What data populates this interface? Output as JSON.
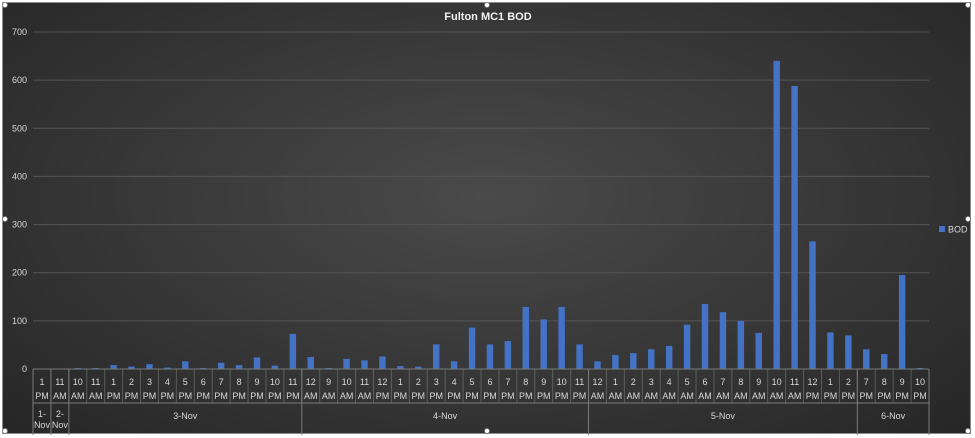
{
  "chart_data": {
    "type": "bar",
    "title": "Fulton MC1 BOD",
    "xlabel": "",
    "ylabel": "",
    "ylim": [
      0,
      700
    ],
    "yticks": [
      0,
      100,
      200,
      300,
      400,
      500,
      600,
      700
    ],
    "grid": true,
    "legend_position": "right",
    "bar_color": "#4472c4",
    "categories": [
      {
        "hour": "1",
        "ampm": "PM"
      },
      {
        "hour": "11",
        "ampm": "AM"
      },
      {
        "hour": "10",
        "ampm": "AM"
      },
      {
        "hour": "11",
        "ampm": "AM"
      },
      {
        "hour": "1",
        "ampm": "PM"
      },
      {
        "hour": "2",
        "ampm": "PM"
      },
      {
        "hour": "3",
        "ampm": "PM"
      },
      {
        "hour": "4",
        "ampm": "PM"
      },
      {
        "hour": "5",
        "ampm": "PM"
      },
      {
        "hour": "6",
        "ampm": "PM"
      },
      {
        "hour": "7",
        "ampm": "PM"
      },
      {
        "hour": "8",
        "ampm": "PM"
      },
      {
        "hour": "9",
        "ampm": "PM"
      },
      {
        "hour": "10",
        "ampm": "PM"
      },
      {
        "hour": "11",
        "ampm": "PM"
      },
      {
        "hour": "12",
        "ampm": "AM"
      },
      {
        "hour": "9",
        "ampm": "AM"
      },
      {
        "hour": "10",
        "ampm": "AM"
      },
      {
        "hour": "11",
        "ampm": "AM"
      },
      {
        "hour": "12",
        "ampm": "PM"
      },
      {
        "hour": "1",
        "ampm": "PM"
      },
      {
        "hour": "2",
        "ampm": "PM"
      },
      {
        "hour": "3",
        "ampm": "PM"
      },
      {
        "hour": "4",
        "ampm": "PM"
      },
      {
        "hour": "5",
        "ampm": "PM"
      },
      {
        "hour": "6",
        "ampm": "PM"
      },
      {
        "hour": "7",
        "ampm": "PM"
      },
      {
        "hour": "8",
        "ampm": "PM"
      },
      {
        "hour": "9",
        "ampm": "PM"
      },
      {
        "hour": "10",
        "ampm": "PM"
      },
      {
        "hour": "11",
        "ampm": "PM"
      },
      {
        "hour": "12",
        "ampm": "AM"
      },
      {
        "hour": "1",
        "ampm": "AM"
      },
      {
        "hour": "2",
        "ampm": "AM"
      },
      {
        "hour": "3",
        "ampm": "AM"
      },
      {
        "hour": "4",
        "ampm": "AM"
      },
      {
        "hour": "5",
        "ampm": "AM"
      },
      {
        "hour": "6",
        "ampm": "AM"
      },
      {
        "hour": "7",
        "ampm": "AM"
      },
      {
        "hour": "8",
        "ampm": "AM"
      },
      {
        "hour": "9",
        "ampm": "AM"
      },
      {
        "hour": "10",
        "ampm": "AM"
      },
      {
        "hour": "11",
        "ampm": "AM"
      },
      {
        "hour": "12",
        "ampm": "PM"
      },
      {
        "hour": "1",
        "ampm": "PM"
      },
      {
        "hour": "2",
        "ampm": "PM"
      },
      {
        "hour": "7",
        "ampm": "PM"
      },
      {
        "hour": "8",
        "ampm": "PM"
      },
      {
        "hour": "9",
        "ampm": "PM"
      },
      {
        "hour": "10",
        "ampm": "PM"
      }
    ],
    "date_groups": [
      {
        "label": "1-Nov",
        "count": 1
      },
      {
        "label": "2-Nov",
        "count": 1
      },
      {
        "label": "3-Nov",
        "count": 13
      },
      {
        "label": "4-Nov",
        "count": 16
      },
      {
        "label": "5-Nov",
        "count": 15
      },
      {
        "label": "6-Nov",
        "count": 4
      }
    ],
    "series": [
      {
        "name": "BOD",
        "values": [
          0,
          0,
          2,
          2,
          8,
          5,
          10,
          3,
          16,
          2,
          13,
          8,
          24,
          7,
          73,
          25,
          2,
          21,
          18,
          26,
          6,
          5,
          51,
          16,
          86,
          51,
          58,
          129,
          103,
          129,
          51,
          16,
          29,
          33,
          41,
          48,
          92,
          135,
          118,
          100,
          75,
          640,
          588,
          265,
          76,
          70,
          41,
          31,
          195,
          2
        ]
      }
    ]
  }
}
